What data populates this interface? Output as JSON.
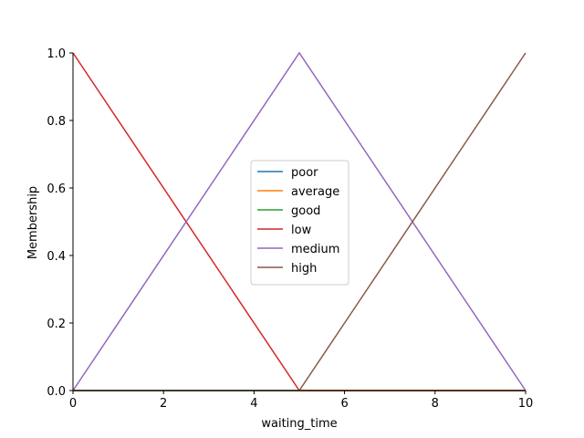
{
  "chart_data": {
    "type": "line",
    "title": "",
    "xlabel": "waiting_time",
    "ylabel": "Membership",
    "xlim": [
      0,
      10
    ],
    "ylim": [
      0,
      1
    ],
    "xticks": [
      0,
      2,
      4,
      6,
      8,
      10
    ],
    "yticks": [
      0.0,
      0.2,
      0.4,
      0.6,
      0.8,
      1.0
    ],
    "ytick_labels": [
      "0.0",
      "0.2",
      "0.4",
      "0.6",
      "0.8",
      "1.0"
    ],
    "xtick_labels": [
      "0",
      "2",
      "4",
      "6",
      "8",
      "10"
    ],
    "grid": false,
    "legend_position": "center",
    "series": [
      {
        "name": "poor",
        "color": "#1f77b4",
        "points": [
          [
            0,
            0
          ],
          [
            10,
            0
          ]
        ]
      },
      {
        "name": "average",
        "color": "#ff7f0e",
        "points": [
          [
            0,
            0
          ],
          [
            10,
            0
          ]
        ]
      },
      {
        "name": "good",
        "color": "#2ca02c",
        "points": [
          [
            0,
            0
          ],
          [
            10,
            0
          ]
        ]
      },
      {
        "name": "low",
        "color": "#d62728",
        "points": [
          [
            0,
            1
          ],
          [
            5,
            0
          ],
          [
            10,
            0
          ]
        ]
      },
      {
        "name": "medium",
        "color": "#9467bd",
        "points": [
          [
            0,
            0
          ],
          [
            5,
            1
          ],
          [
            10,
            0
          ]
        ]
      },
      {
        "name": "high",
        "color": "#8c564b",
        "points": [
          [
            0,
            0
          ],
          [
            5,
            0
          ],
          [
            10,
            1
          ]
        ]
      }
    ]
  }
}
